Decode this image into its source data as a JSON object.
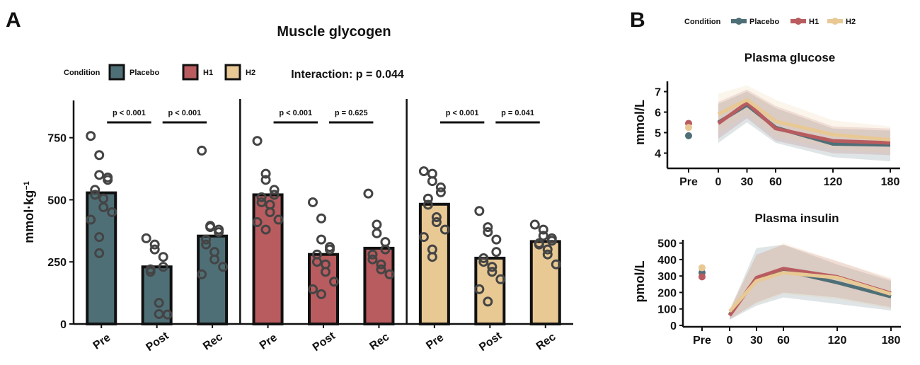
{
  "panel_labels": {
    "a": "A",
    "b": "B"
  },
  "chart_data": [
    {
      "type": "bar",
      "panel": "A",
      "title": "Muscle glycogen",
      "ylabel": "mmol·kg",
      "ylabel_sup": "−1",
      "ylim": [
        0,
        900
      ],
      "yticks": [
        0,
        250,
        500,
        750
      ],
      "interaction": "Interaction: p = 0.044",
      "legend_title": "Condition",
      "categories": [
        "Pre",
        "Post",
        "Rec"
      ],
      "series": [
        {
          "name": "Placebo",
          "color": "#4F6F77",
          "values": [
            528,
            230,
            354
          ],
          "points": [
            [
              757,
              680,
              600,
              590,
              580,
              540,
              520,
              505,
              470,
              450,
              420,
              350,
              285
            ],
            [
              345,
              320,
              300,
              270,
              230,
              220,
              210,
              85,
              40,
              38
            ],
            [
              698,
              395,
              390,
              380,
              370,
              340,
              320,
              290,
              260,
              230,
              200
            ]
          ],
          "comparisons": [
            {
              "label": "p < 0.001"
            },
            {
              "label": "p < 0.001"
            }
          ]
        },
        {
          "name": "H1",
          "color": "#B85C5F",
          "values": [
            520,
            280,
            305
          ],
          "points": [
            [
              737,
              605,
              580,
              540,
              520,
              510,
              490,
              480,
              450,
              420,
              410,
              380
            ],
            [
              490,
              425,
              340,
              310,
              300,
              280,
              250,
              240,
              210,
              170,
              140,
              120
            ],
            [
              525,
              400,
              365,
              330,
              300,
              280,
              260,
              240,
              220,
              200
            ]
          ],
          "comparisons": [
            {
              "label": "p < 0.001"
            },
            {
              "label": "p = 0.625"
            }
          ]
        },
        {
          "name": "H2",
          "color": "#E8C994",
          "values": [
            482,
            265,
            332
          ],
          "points": [
            [
              615,
              605,
              575,
              550,
              530,
              505,
              480,
              430,
              410,
              380,
              350,
              300,
              270
            ],
            [
              455,
              390,
              370,
              340,
              290,
              265,
              250,
              230,
              210,
              180,
              140,
              90
            ],
            [
              400,
              380,
              355,
              345,
              335,
              325,
              320,
              300,
              280,
              240
            ]
          ],
          "comparisons": [
            {
              "label": "p < 0.001"
            },
            {
              "label": "p = 0.041"
            }
          ]
        }
      ]
    },
    {
      "type": "line",
      "panel": "B",
      "title": "Plasma glucose",
      "ylabel": "mmol/L",
      "ylim": [
        3.5,
        7.5
      ],
      "yticks": [
        4,
        5,
        6,
        7
      ],
      "x": [
        0,
        30,
        60,
        120,
        180
      ],
      "xticks": [
        0,
        30,
        60,
        120,
        180
      ],
      "pre_label": "Pre",
      "series": [
        {
          "name": "Placebo",
          "color": "#4F6F77",
          "pre": 4.85,
          "values": [
            5.5,
            6.35,
            5.25,
            4.45,
            4.4
          ],
          "lower": [
            4.5,
            5.5,
            4.5,
            3.8,
            3.6
          ],
          "upper": [
            6.4,
            7.0,
            6.2,
            5.2,
            5.1
          ]
        },
        {
          "name": "H1",
          "color": "#B85C5F",
          "pre": 5.45,
          "values": [
            5.45,
            6.45,
            5.2,
            4.6,
            4.5
          ],
          "lower": [
            4.7,
            5.7,
            4.6,
            4.0,
            3.9
          ],
          "upper": [
            6.5,
            7.1,
            6.3,
            5.3,
            5.2
          ]
        },
        {
          "name": "H2",
          "color": "#E8C994",
          "pre": 5.25,
          "values": [
            5.9,
            6.6,
            5.55,
            4.9,
            4.65
          ],
          "lower": [
            5.0,
            5.9,
            4.8,
            4.2,
            4.0
          ],
          "upper": [
            6.9,
            7.3,
            6.6,
            5.6,
            5.3
          ]
        }
      ]
    },
    {
      "type": "line",
      "panel": "B",
      "title": "Plasma insulin",
      "ylabel": "pmol/L",
      "ylim": [
        0,
        520
      ],
      "yticks": [
        0,
        100,
        200,
        300,
        400,
        500
      ],
      "x": [
        0,
        30,
        60,
        120,
        180
      ],
      "xticks": [
        0,
        30,
        60,
        120,
        180
      ],
      "pre_label": "Pre",
      "series": [
        {
          "name": "Placebo",
          "color": "#4F6F77",
          "pre": 320,
          "values": [
            65,
            285,
            335,
            260,
            175
          ],
          "lower": [
            35,
            120,
            170,
            130,
            90
          ],
          "upper": [
            90,
            470,
            490,
            370,
            270
          ]
        },
        {
          "name": "H1",
          "color": "#B85C5F",
          "pre": 295,
          "values": [
            60,
            290,
            345,
            295,
            195
          ],
          "lower": [
            35,
            140,
            200,
            170,
            110
          ],
          "upper": [
            90,
            430,
            490,
            390,
            280
          ]
        },
        {
          "name": "H2",
          "color": "#E8C994",
          "pre": 350,
          "values": [
            85,
            270,
            320,
            290,
            190
          ],
          "lower": [
            50,
            130,
            190,
            160,
            100
          ],
          "upper": [
            110,
            420,
            500,
            390,
            290
          ]
        }
      ]
    }
  ]
}
